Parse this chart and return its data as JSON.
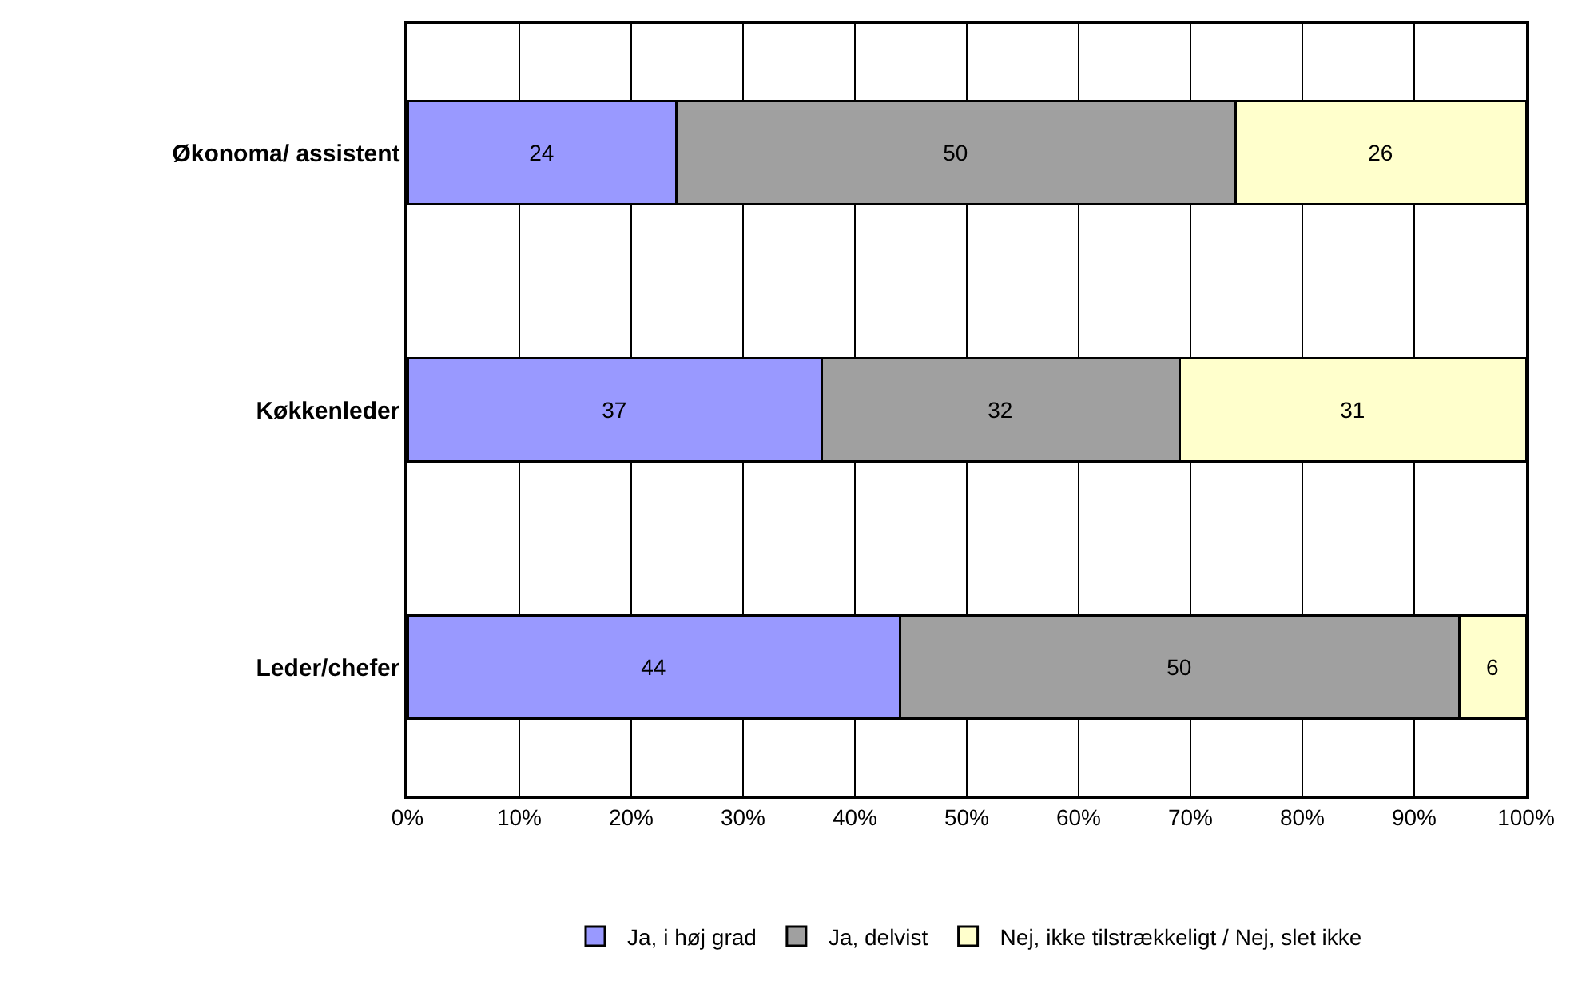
{
  "chart_data": {
    "type": "bar",
    "orientation": "horizontal",
    "stacked": true,
    "categories": [
      "Økonoma/ assistent",
      "Køkkenleder",
      "Leder/chefer"
    ],
    "series": [
      {
        "name": "Ja, i høj grad",
        "color": "#9999ff",
        "values": [
          24,
          37,
          44
        ]
      },
      {
        "name": "Ja, delvist",
        "color": "#a0a0a0",
        "values": [
          50,
          32,
          50
        ]
      },
      {
        "name": "Nej, ikke tilstrækkeligt / Nej, slet ikke",
        "color": "#ffffcc",
        "values": [
          26,
          31,
          6
        ]
      }
    ],
    "xlim": [
      0,
      100
    ],
    "xticks": [
      {
        "value": 0,
        "label": "0%"
      },
      {
        "value": 10,
        "label": "10%"
      },
      {
        "value": 20,
        "label": "20%"
      },
      {
        "value": 30,
        "label": "30%"
      },
      {
        "value": 40,
        "label": "40%"
      },
      {
        "value": 50,
        "label": "50%"
      },
      {
        "value": 60,
        "label": "60%"
      },
      {
        "value": 70,
        "label": "70%"
      },
      {
        "value": 80,
        "label": "80%"
      },
      {
        "value": 90,
        "label": "90%"
      },
      {
        "value": 100,
        "label": "100%"
      }
    ],
    "grid": "x",
    "legend": "bottom",
    "data_labels": true
  }
}
